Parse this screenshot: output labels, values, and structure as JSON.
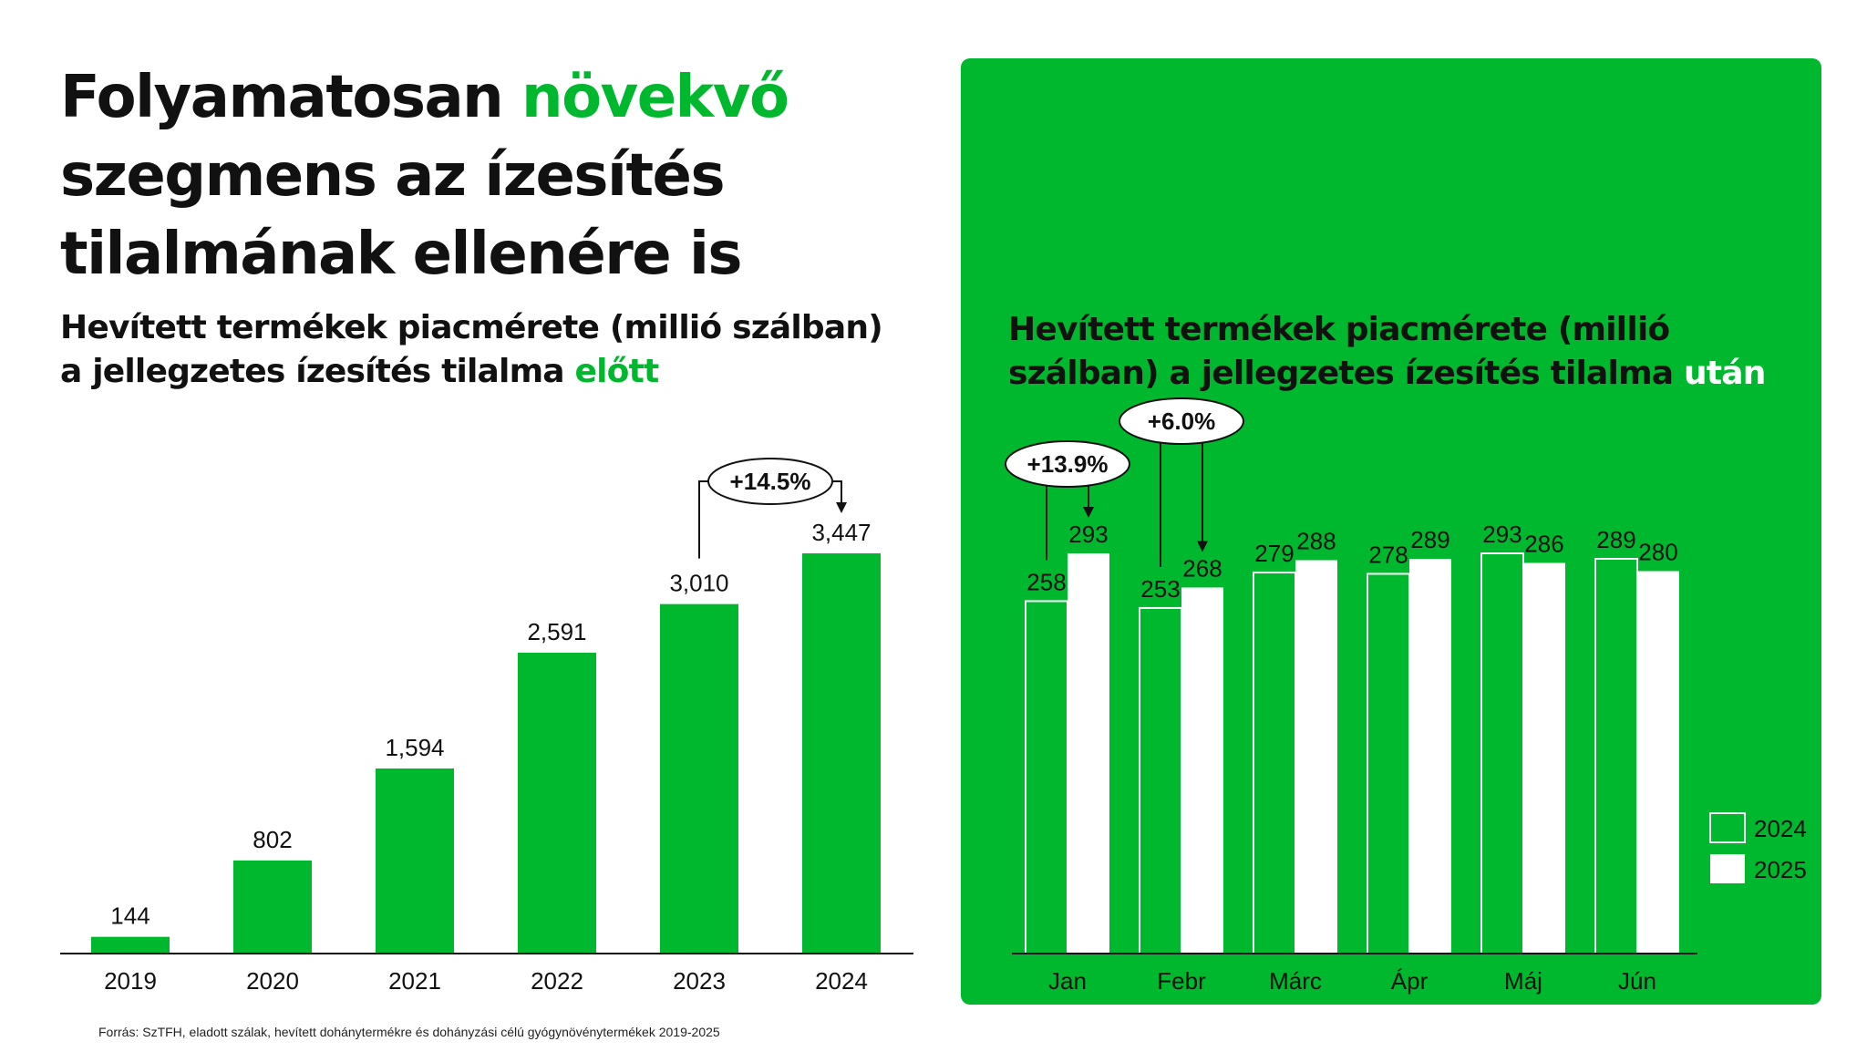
{
  "headline": {
    "part1": "Folyamatosan ",
    "highlight": "növekvő",
    "part2": " szegmens az ízesítés tilalmának ellenére is"
  },
  "left_subtitle": {
    "text": "Hevített termékek piacmérete (millió szálban) a jellegzetes ízesítés tilalma ",
    "highlight": "előtt"
  },
  "right_subtitle": {
    "text": "Hevített termékek piacmérete (millió szálban) a jellegzetes ízesítés tilalma ",
    "highlight": "után"
  },
  "source": "Forrás: SzTFH, eladott szálak, hevített dohánytermékre és dohányzási célú gyógynövénytermékek  2019-2025",
  "colors": {
    "green": "#00b82e",
    "white": "#ffffff",
    "text": "#111111"
  },
  "chart_data": [
    {
      "type": "bar",
      "categories": [
        "2019",
        "2020",
        "2021",
        "2022",
        "2023",
        "2024"
      ],
      "values": [
        144,
        802,
        1594,
        2591,
        3010,
        3447
      ],
      "value_labels": [
        "144",
        "802",
        "1,594",
        "2,591",
        "3,010",
        "3,447"
      ],
      "ylim": [
        0,
        3447
      ],
      "grid": false,
      "annotations": [
        {
          "text": "+14.5%",
          "from": "2023",
          "to": "2024"
        }
      ]
    },
    {
      "type": "bar",
      "categories": [
        "Jan",
        "Febr",
        "Márc",
        "Ápr",
        "Máj",
        "Jún"
      ],
      "series": [
        {
          "name": "2024",
          "values": [
            258,
            253,
            279,
            278,
            293,
            289
          ]
        },
        {
          "name": "2025",
          "values": [
            293,
            268,
            288,
            289,
            286,
            280
          ]
        }
      ],
      "ylim": [
        0,
        293
      ],
      "grid": false,
      "legend": "right",
      "annotations": [
        {
          "text": "+13.9%",
          "category": "Jan"
        },
        {
          "text": "+6.0%",
          "category": "Febr"
        }
      ]
    }
  ]
}
